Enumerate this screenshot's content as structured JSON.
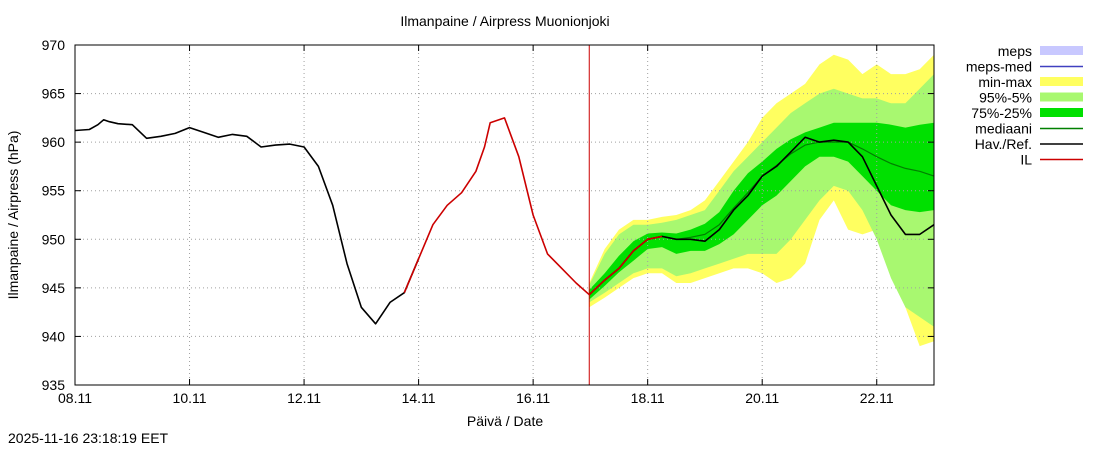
{
  "chart_data": {
    "type": "line",
    "title": "Ilmanpaine / Airpress Muonionjoki",
    "xlabel": "Päivä / Date",
    "ylabel": "Ilmanpaine / Airpress (hPa)",
    "ylim": [
      935,
      970
    ],
    "yticks": [
      935,
      940,
      945,
      950,
      955,
      960,
      965,
      970
    ],
    "xlim": [
      0,
      15
    ],
    "xticks": [
      {
        "x": 0,
        "label": "08.11"
      },
      {
        "x": 2,
        "label": "10.11"
      },
      {
        "x": 4,
        "label": "12.11"
      },
      {
        "x": 6,
        "label": "14.11"
      },
      {
        "x": 8,
        "label": "16.11"
      },
      {
        "x": 10,
        "label": "18.11"
      },
      {
        "x": 12,
        "label": "20.11"
      },
      {
        "x": 14,
        "label": "22.11"
      }
    ],
    "grid": true,
    "legend_position": "right",
    "forecast_start": 8.98,
    "colors": {
      "meps": "#c8c8ff",
      "meps_med": "#4040c0",
      "minmax": "#ffff60",
      "p95_5": "#a8f870",
      "p75_25": "#00e000",
      "mediaani": "#008000",
      "hav": "#000000",
      "il": "#cc0000"
    },
    "legend": [
      {
        "key": "meps",
        "label": "meps"
      },
      {
        "key": "meps_med",
        "label": "meps-med"
      },
      {
        "key": "minmax",
        "label": "min-max"
      },
      {
        "key": "p95_5",
        "label": "95%-5%"
      },
      {
        "key": "p75_25",
        "label": "75%-25%"
      },
      {
        "key": "mediaani",
        "label": "mediaani"
      },
      {
        "key": "hav",
        "label": "Hav./Ref."
      },
      {
        "key": "il",
        "label": "IL"
      }
    ],
    "series": [
      {
        "name": "Hav./Ref.",
        "key": "hav",
        "x": [
          0,
          0.25,
          0.4,
          0.5,
          0.6,
          0.75,
          1.0,
          1.25,
          1.5,
          1.75,
          2.0,
          2.25,
          2.5,
          2.75,
          3.0,
          3.25,
          3.5,
          3.75,
          4.0,
          4.25,
          4.5,
          4.75,
          5.0,
          5.25,
          5.5,
          5.75,
          6.0
        ],
        "y": [
          961.2,
          961.3,
          961.8,
          962.3,
          962.1,
          961.9,
          961.8,
          960.4,
          960.6,
          960.9,
          961.5,
          961.0,
          960.5,
          960.8,
          960.6,
          959.5,
          959.7,
          959.8,
          959.5,
          957.5,
          953.5,
          947.5,
          943.0,
          941.3,
          943.5,
          944.5,
          948.0
        ]
      },
      {
        "name": "IL",
        "key": "il",
        "x": [
          5.75,
          6.0,
          6.25,
          6.5,
          6.75,
          7.0,
          7.15,
          7.25,
          7.5,
          7.75,
          8.0,
          8.25,
          8.5,
          8.75,
          8.98,
          9.25,
          9.5,
          9.75,
          10.0,
          10.25
        ],
        "y": [
          944.5,
          948.0,
          951.5,
          953.5,
          954.8,
          957.0,
          959.5,
          962.0,
          962.5,
          958.5,
          952.5,
          948.5,
          947.0,
          945.5,
          944.3,
          945.8,
          947.0,
          948.8,
          950.0,
          950.3
        ]
      },
      {
        "name": "Hav./Ref. forecast",
        "key": "hav",
        "x": [
          8.98,
          9.25,
          9.5,
          9.75,
          10.0,
          10.25,
          10.5,
          10.75,
          11.0,
          11.25,
          11.5,
          11.75,
          12.0,
          12.25,
          12.5,
          12.75,
          13.0,
          13.25,
          13.5,
          13.75,
          14.0,
          14.25,
          14.5,
          14.75,
          15.0
        ],
        "y": [
          944.3,
          945.8,
          947.0,
          948.8,
          950.0,
          950.3,
          950.0,
          950.0,
          949.8,
          951.0,
          953.0,
          954.5,
          956.5,
          957.5,
          959.0,
          960.5,
          960.0,
          960.2,
          960.0,
          958.5,
          955.5,
          952.5,
          950.5,
          950.5,
          951.5
        ]
      },
      {
        "name": "mediaani",
        "key": "mediaani",
        "x": [
          8.98,
          9.25,
          9.5,
          9.75,
          10.0,
          10.25,
          10.5,
          10.75,
          11.0,
          11.25,
          11.5,
          11.75,
          12.0,
          12.25,
          12.5,
          12.75,
          13.0,
          13.25,
          13.5,
          13.75,
          14.0,
          14.25,
          14.5,
          14.75,
          15.0
        ],
        "y": [
          944.3,
          945.8,
          947.0,
          948.8,
          950.0,
          950.3,
          950.0,
          950.2,
          950.5,
          951.5,
          953.2,
          954.8,
          956.5,
          957.6,
          958.8,
          959.7,
          960.0,
          960.0,
          960.0,
          959.3,
          958.5,
          957.8,
          957.3,
          957.0,
          956.5
        ]
      }
    ],
    "bands": [
      {
        "name": "min-max",
        "key": "minmax",
        "x": [
          8.98,
          9.25,
          9.5,
          9.75,
          10.0,
          10.25,
          10.5,
          10.75,
          11.0,
          11.25,
          11.5,
          11.75,
          12.0,
          12.25,
          12.5,
          12.75,
          13.0,
          13.25,
          13.5,
          13.75,
          14.0,
          14.25,
          14.5,
          14.75,
          15.0
        ],
        "upper": [
          945.5,
          949.0,
          951.0,
          952.0,
          952.0,
          952.3,
          952.5,
          953.0,
          954.0,
          956.0,
          958.0,
          960.0,
          962.5,
          964.0,
          965.0,
          966.0,
          968.0,
          969.0,
          968.5,
          967.0,
          968.0,
          967.0,
          967.0,
          967.5,
          969.0
        ],
        "lower": [
          943.0,
          944.0,
          945.0,
          946.0,
          946.5,
          946.5,
          945.5,
          945.5,
          946.0,
          946.5,
          947.0,
          947.0,
          946.5,
          945.5,
          946.0,
          947.5,
          952.0,
          954.0,
          951.0,
          950.5,
          951.0,
          948.0,
          943.0,
          939.0,
          939.5
        ]
      },
      {
        "name": "95%-5%",
        "key": "p95_5",
        "x": [
          8.98,
          9.25,
          9.5,
          9.75,
          10.0,
          10.25,
          10.5,
          10.75,
          11.0,
          11.25,
          11.5,
          11.75,
          12.0,
          12.25,
          12.5,
          12.75,
          13.0,
          13.25,
          13.5,
          13.75,
          14.0,
          14.25,
          14.5,
          14.75,
          15.0
        ],
        "upper": [
          945.3,
          948.5,
          950.5,
          951.5,
          951.5,
          951.7,
          952.0,
          952.5,
          953.0,
          955.0,
          957.0,
          958.5,
          960.0,
          961.5,
          963.0,
          964.0,
          965.0,
          965.5,
          965.0,
          964.5,
          964.5,
          964.0,
          964.0,
          965.5,
          967.0
        ],
        "lower": [
          943.5,
          944.5,
          945.5,
          946.5,
          947.0,
          947.0,
          946.2,
          946.5,
          947.0,
          947.5,
          948.0,
          948.5,
          948.5,
          948.5,
          950.0,
          952.0,
          954.0,
          955.5,
          955.0,
          953.0,
          950.0,
          946.0,
          943.0,
          942.0,
          941.0
        ]
      },
      {
        "name": "75%-25%",
        "key": "p75_25",
        "x": [
          8.98,
          9.25,
          9.5,
          9.75,
          10.0,
          10.25,
          10.5,
          10.75,
          11.0,
          11.25,
          11.5,
          11.75,
          12.0,
          12.25,
          12.5,
          12.75,
          13.0,
          13.25,
          13.5,
          13.75,
          14.0,
          14.25,
          14.5,
          14.75,
          15.0
        ],
        "upper": [
          944.8,
          946.5,
          948.3,
          949.8,
          950.6,
          950.7,
          950.6,
          951.0,
          951.6,
          952.8,
          955.0,
          956.8,
          958.0,
          959.3,
          960.3,
          961.0,
          961.5,
          962.0,
          962.0,
          962.0,
          962.0,
          961.8,
          961.5,
          961.8,
          962.0
        ],
        "lower": [
          943.8,
          945.2,
          946.6,
          947.8,
          949.0,
          949.2,
          948.5,
          948.8,
          948.8,
          949.5,
          950.5,
          952.0,
          953.5,
          954.5,
          956.0,
          957.5,
          958.5,
          958.5,
          958.0,
          956.5,
          955.0,
          953.5,
          953.0,
          952.8,
          953.0
        ]
      }
    ]
  },
  "timestamp": "2025-11-16 23:18:19 EET"
}
